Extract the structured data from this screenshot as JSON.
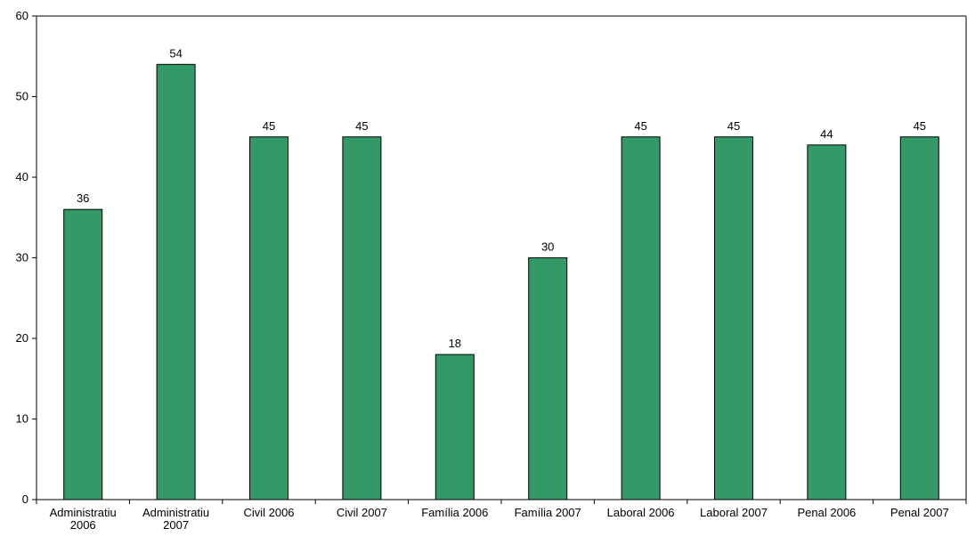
{
  "chart_data": {
    "type": "bar",
    "title": "",
    "xlabel": "",
    "ylabel": "",
    "categories": [
      [
        "Administratiu",
        "2006"
      ],
      [
        "Administratiu",
        "2007"
      ],
      [
        "Civil 2006"
      ],
      [
        "Civil 2007"
      ],
      [
        "Família 2006"
      ],
      [
        "Família 2007"
      ],
      [
        "Laboral 2006"
      ],
      [
        "Laboral 2007"
      ],
      [
        "Penal 2006"
      ],
      [
        "Penal 2007"
      ]
    ],
    "values": [
      36,
      54,
      45,
      45,
      18,
      30,
      45,
      45,
      44,
      45
    ],
    "ylim": [
      0,
      60
    ],
    "yticks": [
      0,
      10,
      20,
      30,
      40,
      50,
      60
    ],
    "grid": false,
    "legend": "none",
    "show_data_labels": true,
    "colors": {
      "bar_fill": "#339966",
      "bar_stroke": "#000000",
      "axis": "#000000",
      "plot_border": "#000000"
    }
  }
}
